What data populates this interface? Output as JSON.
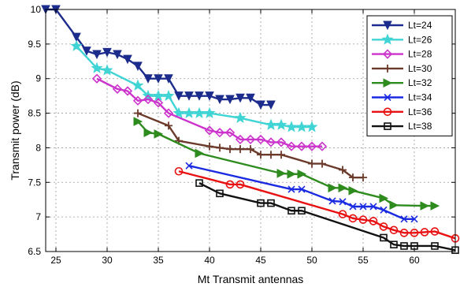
{
  "chart_data": {
    "type": "line",
    "title": "",
    "xlabel": "Mt Transmit antennas",
    "ylabel": "Transmit power (dB)",
    "xlim": [
      24,
      64
    ],
    "ylim": [
      6.5,
      10
    ],
    "xticks": [
      "25",
      "30",
      "35",
      "40",
      "45",
      "50",
      "55",
      "60"
    ],
    "yticks": [
      "6.5",
      "7",
      "7.5",
      "8",
      "8.5",
      "9",
      "9.5",
      "10"
    ],
    "grid": true,
    "legend_position": "top-right",
    "series": [
      {
        "name": "Lt=24",
        "color": "#1c2c8c",
        "marker": "triangle-down",
        "x": [
          24,
          25,
          27,
          28,
          29,
          30,
          31,
          32,
          33,
          34,
          35,
          36,
          37,
          38,
          39,
          40,
          41,
          42,
          43,
          44,
          45,
          46
        ],
        "y": [
          10,
          10,
          9.6,
          9.4,
          9.35,
          9.38,
          9.35,
          9.28,
          9.18,
          9.0,
          9.0,
          9.0,
          8.75,
          8.75,
          8.75,
          8.75,
          8.7,
          8.7,
          8.72,
          8.72,
          8.62,
          8.62
        ]
      },
      {
        "name": "Lt=26",
        "color": "#40d4d4",
        "marker": "star",
        "x": [
          27,
          29,
          30,
          33,
          34,
          35,
          36,
          37,
          38,
          39,
          40,
          43,
          46,
          47,
          48,
          49,
          50
        ],
        "y": [
          9.47,
          9.15,
          9.12,
          8.9,
          8.75,
          8.75,
          8.75,
          8.5,
          8.5,
          8.5,
          8.5,
          8.43,
          8.33,
          8.33,
          8.3,
          8.3,
          8.3
        ]
      },
      {
        "name": "Lt=28",
        "color": "#cc33cc",
        "marker": "diamond",
        "x": [
          29,
          31,
          32,
          33,
          34,
          35,
          36,
          40,
          41,
          42,
          43,
          44,
          45,
          46,
          47,
          48,
          49,
          50,
          51
        ],
        "y": [
          9.0,
          8.85,
          8.82,
          8.68,
          8.7,
          8.65,
          8.5,
          8.25,
          8.22,
          8.22,
          8.12,
          8.12,
          8.12,
          8.08,
          8.08,
          8.02,
          8.02,
          8.02,
          8.02
        ]
      },
      {
        "name": "Lt=30",
        "color": "#6b3a2a",
        "marker": "plus",
        "x": [
          33,
          36,
          37,
          40,
          41,
          42,
          43,
          44,
          45,
          46,
          47,
          50,
          51,
          53,
          54,
          55
        ],
        "y": [
          8.5,
          8.32,
          8.1,
          8.02,
          8.0,
          7.98,
          7.98,
          7.98,
          7.9,
          7.9,
          7.9,
          7.77,
          7.77,
          7.68,
          7.57,
          7.57
        ]
      },
      {
        "name": "Lt=32",
        "color": "#2e8b1e",
        "marker": "triangle-right",
        "x": [
          33,
          34,
          35,
          39,
          47,
          48,
          49,
          52,
          53,
          54,
          57,
          58,
          61,
          62
        ],
        "y": [
          8.38,
          8.22,
          8.2,
          7.92,
          7.63,
          7.62,
          7.62,
          7.42,
          7.42,
          7.38,
          7.27,
          7.17,
          7.16,
          7.16
        ]
      },
      {
        "name": "Lt=34",
        "color": "#1a2ae0",
        "marker": "x",
        "x": [
          38,
          48,
          49,
          52,
          53,
          54,
          55,
          56,
          57,
          59,
          60
        ],
        "y": [
          7.74,
          7.4,
          7.4,
          7.23,
          7.22,
          7.15,
          7.15,
          7.15,
          7.1,
          6.97,
          6.97
        ]
      },
      {
        "name": "Lt=36",
        "color": "#e81010",
        "marker": "circle",
        "x": [
          37,
          42,
          43,
          53,
          54,
          55,
          56,
          57,
          58,
          59,
          60,
          61,
          62,
          64
        ],
        "y": [
          7.66,
          7.47,
          7.47,
          7.04,
          6.98,
          6.96,
          6.94,
          6.86,
          6.81,
          6.77,
          6.77,
          6.78,
          6.79,
          6.69
        ]
      },
      {
        "name": "Lt=38",
        "color": "#111111",
        "marker": "square",
        "x": [
          39,
          41,
          45,
          46,
          48,
          49,
          57,
          58,
          59,
          60,
          62,
          64
        ],
        "y": [
          7.49,
          7.34,
          7.2,
          7.2,
          7.09,
          7.09,
          6.7,
          6.6,
          6.58,
          6.58,
          6.58,
          6.52
        ]
      }
    ]
  }
}
